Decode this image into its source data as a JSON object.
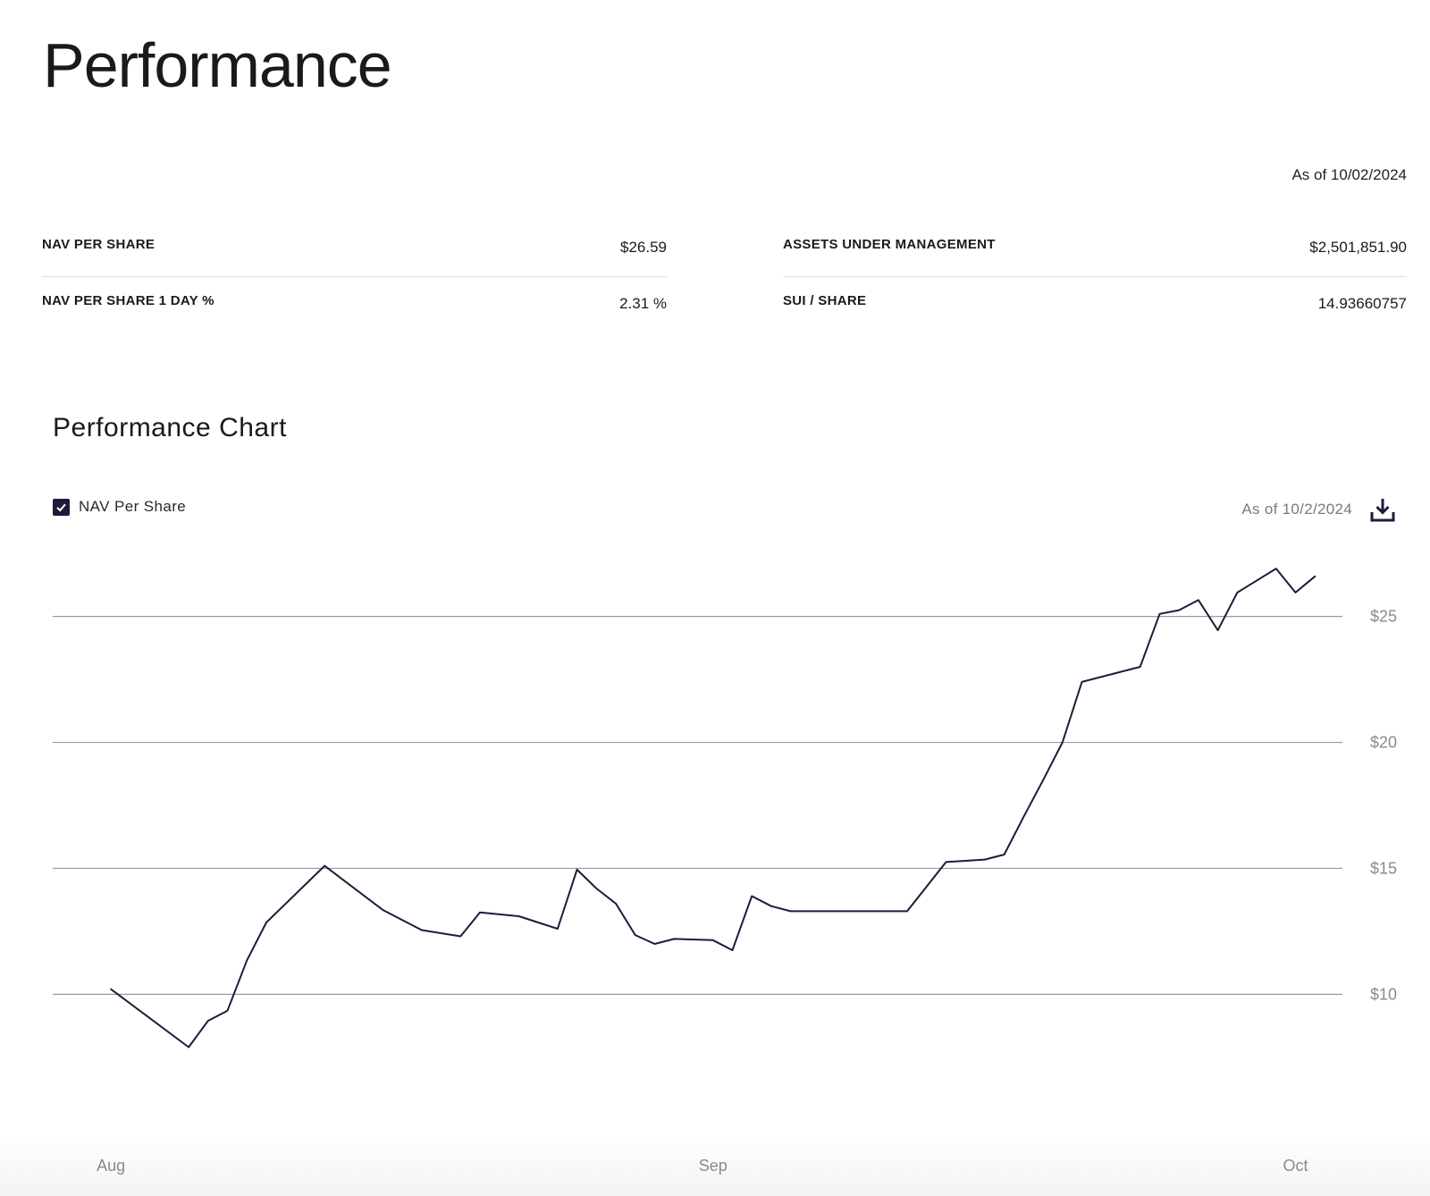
{
  "page": {
    "title": "Performance",
    "as_of": "As of 10/02/2024"
  },
  "stats": {
    "nav_per_share": {
      "label": "NAV PER SHARE",
      "value": "$26.59"
    },
    "nav_1day": {
      "label": "NAV PER SHARE 1 DAY %",
      "value": "2.31 %"
    },
    "aum": {
      "label": "ASSETS UNDER MANAGEMENT",
      "value": "$2,501,851.90"
    },
    "sui_share": {
      "label": "SUI / SHARE",
      "value": "14.93660757"
    }
  },
  "chart": {
    "title": "Performance Chart",
    "legend_label": "NAV Per Share",
    "legend_checked": true,
    "as_of": "As of 10/2/2024",
    "download_icon": "download-icon",
    "line_color": "#1e1b3a",
    "grid_color": "#9a9a9a"
  },
  "chart_data": {
    "type": "line",
    "title": "Performance Chart",
    "xlabel": "",
    "ylabel": "",
    "y_tick_labels": [
      "$10",
      "$15",
      "$20",
      "$25"
    ],
    "y_ticks": [
      10,
      15,
      20,
      25
    ],
    "ylim": [
      6.5,
      28.5
    ],
    "x_tick_labels": [
      "Aug",
      "Sep",
      "Oct"
    ],
    "x_tick_dates": [
      "2024-08-01",
      "2024-09-01",
      "2024-10-01"
    ],
    "xlim": [
      "2024-07-29",
      "2024-10-03"
    ],
    "grid": true,
    "legend_position": "top-left",
    "series": [
      {
        "name": "NAV Per Share",
        "x": [
          "2024-08-01",
          "2024-08-05",
          "2024-08-06",
          "2024-08-07",
          "2024-08-08",
          "2024-08-09",
          "2024-08-12",
          "2024-08-15",
          "2024-08-17",
          "2024-08-19",
          "2024-08-20",
          "2024-08-22",
          "2024-08-23",
          "2024-08-24",
          "2024-08-25",
          "2024-08-26",
          "2024-08-27",
          "2024-08-28",
          "2024-08-29",
          "2024-08-30",
          "2024-09-01",
          "2024-09-02",
          "2024-09-03",
          "2024-09-04",
          "2024-09-05",
          "2024-09-10",
          "2024-09-11",
          "2024-09-13",
          "2024-09-15",
          "2024-09-16",
          "2024-09-17",
          "2024-09-18",
          "2024-09-19",
          "2024-09-20",
          "2024-09-23",
          "2024-09-24",
          "2024-09-25",
          "2024-09-26",
          "2024-09-27",
          "2024-09-28",
          "2024-09-30",
          "2024-10-01",
          "2024-10-02"
        ],
        "values": [
          10.2,
          7.9,
          8.95,
          9.35,
          11.35,
          12.85,
          15.1,
          13.35,
          12.55,
          12.3,
          13.25,
          13.1,
          12.85,
          12.6,
          14.95,
          14.2,
          13.6,
          12.35,
          12.0,
          12.2,
          12.15,
          11.75,
          13.9,
          13.5,
          13.3,
          13.3,
          13.3,
          15.25,
          15.35,
          15.55,
          17.05,
          18.5,
          20.0,
          22.4,
          23.0,
          25.1,
          25.25,
          25.65,
          24.45,
          25.95,
          26.9,
          25.95,
          26.59
        ]
      }
    ]
  }
}
